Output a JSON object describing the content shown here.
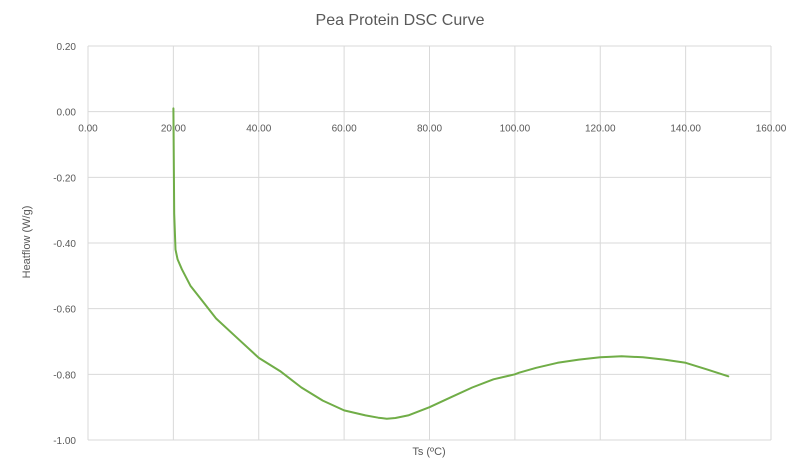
{
  "chart_data": {
    "type": "line",
    "title": "Pea Protein DSC Curve",
    "xlabel": "Ts (ºC)",
    "ylabel": "Heatflow (W/g)",
    "xlim": [
      0,
      160
    ],
    "ylim": [
      -1.0,
      0.2
    ],
    "x_ticks": [
      "0.00",
      "20.00",
      "40.00",
      "60.00",
      "80.00",
      "100.00",
      "120.00",
      "140.00",
      "160.00"
    ],
    "y_ticks": [
      "0.20",
      "0.00",
      "-0.20",
      "-0.40",
      "-0.60",
      "-0.80",
      "-1.00"
    ],
    "grid": true,
    "legend": "none",
    "series_color": "#70ad47",
    "series": [
      {
        "x": [
          20.0,
          20.2,
          20.5,
          21.0,
          22.0,
          24.0,
          27.0,
          30.0,
          35.0,
          40.0,
          45.0,
          50.0,
          55.0,
          60.0,
          65.0,
          68.0,
          70.0,
          72.0,
          75.0,
          80.0,
          85.0,
          90.0,
          95.0,
          100.0,
          101.0,
          105.0,
          110.0,
          115.0,
          120.0,
          122.0,
          125.0,
          130.0,
          135.0,
          140.0,
          145.0,
          150.0
        ],
        "y": [
          0.01,
          -0.31,
          -0.42,
          -0.45,
          -0.48,
          -0.53,
          -0.58,
          -0.63,
          -0.69,
          -0.75,
          -0.79,
          -0.84,
          -0.88,
          -0.91,
          -0.925,
          -0.932,
          -0.935,
          -0.933,
          -0.925,
          -0.9,
          -0.87,
          -0.84,
          -0.815,
          -0.8,
          -0.795,
          -0.78,
          -0.765,
          -0.755,
          -0.748,
          -0.747,
          -0.745,
          -0.748,
          -0.755,
          -0.765,
          -0.785,
          -0.806
        ]
      }
    ]
  }
}
